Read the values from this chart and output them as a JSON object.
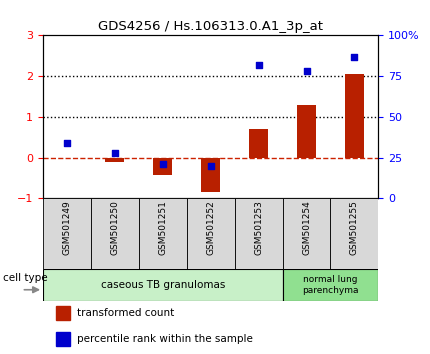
{
  "title": "GDS4256 / Hs.106313.0.A1_3p_at",
  "samples": [
    "GSM501249",
    "GSM501250",
    "GSM501251",
    "GSM501252",
    "GSM501253",
    "GSM501254",
    "GSM501255"
  ],
  "red_bars": [
    0.0,
    -0.1,
    -0.42,
    -0.85,
    0.7,
    1.3,
    2.05
  ],
  "blue_dots": [
    34,
    28,
    21,
    20,
    82,
    78,
    87
  ],
  "ylim_left": [
    -1,
    3
  ],
  "ylim_right": [
    0,
    100
  ],
  "yticks_left": [
    -1,
    0,
    1,
    2,
    3
  ],
  "yticks_right": [
    0,
    25,
    50,
    75,
    100
  ],
  "yticklabels_right": [
    "0",
    "25",
    "50",
    "75",
    "100%"
  ],
  "group1_label": "caseous TB granulomas",
  "group2_label": "normal lung\nparenchyma",
  "group1_color": "#c8f0c8",
  "group2_color": "#90e090",
  "bar_color": "#b82000",
  "dot_color": "#0000cc",
  "bar_width": 0.4,
  "legend_red_label": "transformed count",
  "legend_blue_label": "percentile rank within the sample",
  "cell_type_label": "cell type"
}
